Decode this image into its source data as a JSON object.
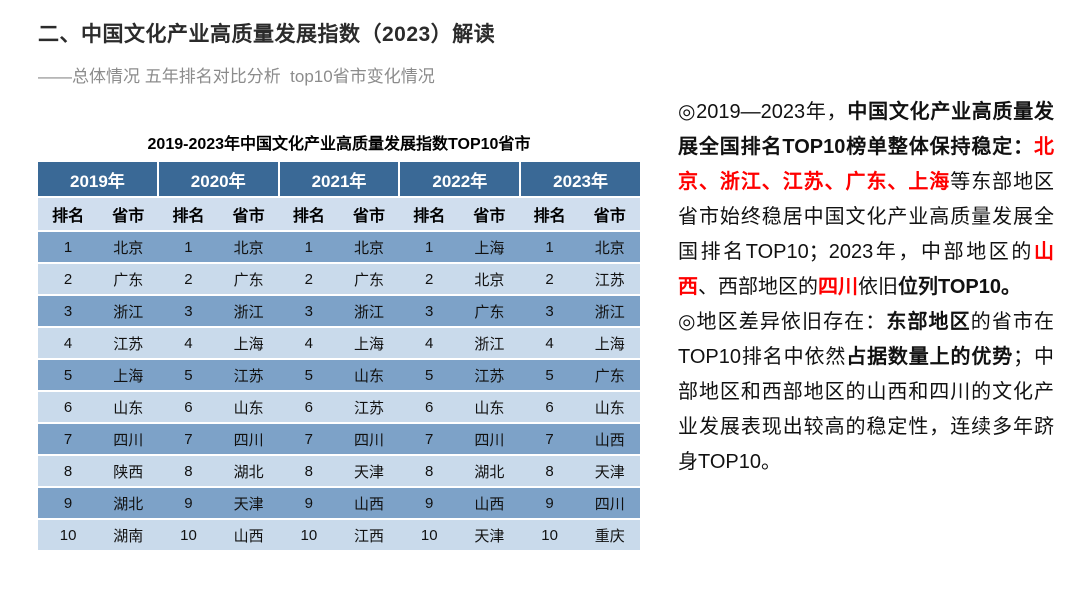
{
  "header": {
    "title": "二、中国文化产业高质量发展指数（2023）解读",
    "subtitle": "——总体情况 五年排名对比分析  top10省市变化情况"
  },
  "table": {
    "title": "2019-2023年中国文化产业高质量发展指数TOP10省市",
    "years": [
      "2019年",
      "2020年",
      "2021年",
      "2022年",
      "2023年"
    ],
    "rank_header": "排名",
    "province_header": "省市",
    "rows": [
      {
        "rank": "1",
        "provinces": [
          "北京",
          "北京",
          "北京",
          "上海",
          "北京"
        ]
      },
      {
        "rank": "2",
        "provinces": [
          "广东",
          "广东",
          "广东",
          "北京",
          "江苏"
        ]
      },
      {
        "rank": "3",
        "provinces": [
          "浙江",
          "浙江",
          "浙江",
          "广东",
          "浙江"
        ]
      },
      {
        "rank": "4",
        "provinces": [
          "江苏",
          "上海",
          "上海",
          "浙江",
          "上海"
        ]
      },
      {
        "rank": "5",
        "provinces": [
          "上海",
          "江苏",
          "山东",
          "江苏",
          "广东"
        ]
      },
      {
        "rank": "6",
        "provinces": [
          "山东",
          "山东",
          "江苏",
          "山东",
          "山东"
        ]
      },
      {
        "rank": "7",
        "provinces": [
          "四川",
          "四川",
          "四川",
          "四川",
          "山西"
        ]
      },
      {
        "rank": "8",
        "provinces": [
          "陕西",
          "湖北",
          "天津",
          "湖北",
          "天津"
        ]
      },
      {
        "rank": "9",
        "provinces": [
          "湖北",
          "天津",
          "山西",
          "山西",
          "四川"
        ]
      },
      {
        "rank": "10",
        "provinces": [
          "湖南",
          "山西",
          "江西",
          "天津",
          "重庆"
        ]
      }
    ]
  },
  "notes": {
    "paragraphs": [
      {
        "runs": [
          {
            "text": "◎2019—2023年，"
          },
          {
            "text": "中国文化产业高质量发展全国排名TOP10榜单整体保持稳定：",
            "bold": true
          },
          {
            "text": "北京、浙江、江苏、广东、上海",
            "bold": true,
            "red": true
          },
          {
            "text": "等东部地区省市始终稳居中国文化产业高质量发展全国排名TOP10；2023年，中部地区的"
          },
          {
            "text": "山西",
            "bold": true,
            "red": true
          },
          {
            "text": "、西部地区的"
          },
          {
            "text": "四川",
            "bold": true,
            "red": true
          },
          {
            "text": "依旧"
          },
          {
            "text": "位列TOP10。",
            "bold": true
          }
        ]
      },
      {
        "runs": [
          {
            "text": "◎地区差异依旧存在："
          },
          {
            "text": "东部地区",
            "bold": true
          },
          {
            "text": "的省市在TOP10排名中依然"
          },
          {
            "text": "占据数量上的优势",
            "bold": true
          },
          {
            "text": "；中部地区和西部地区的山西和四川的文化产业发展表现出较高的稳定性，连续多年跻身TOP10。"
          }
        ]
      }
    ]
  },
  "colors": {
    "year_header_bg": "#3a6996",
    "year_header_text": "#ffffff",
    "subheader_bg": "#d0deee",
    "row_dark": "#7da2c8",
    "row_light": "#c9daeb",
    "accent_red": "#ff0000",
    "title_text": "#2b2b2b",
    "subtitle_text": "#8c8c8c"
  }
}
